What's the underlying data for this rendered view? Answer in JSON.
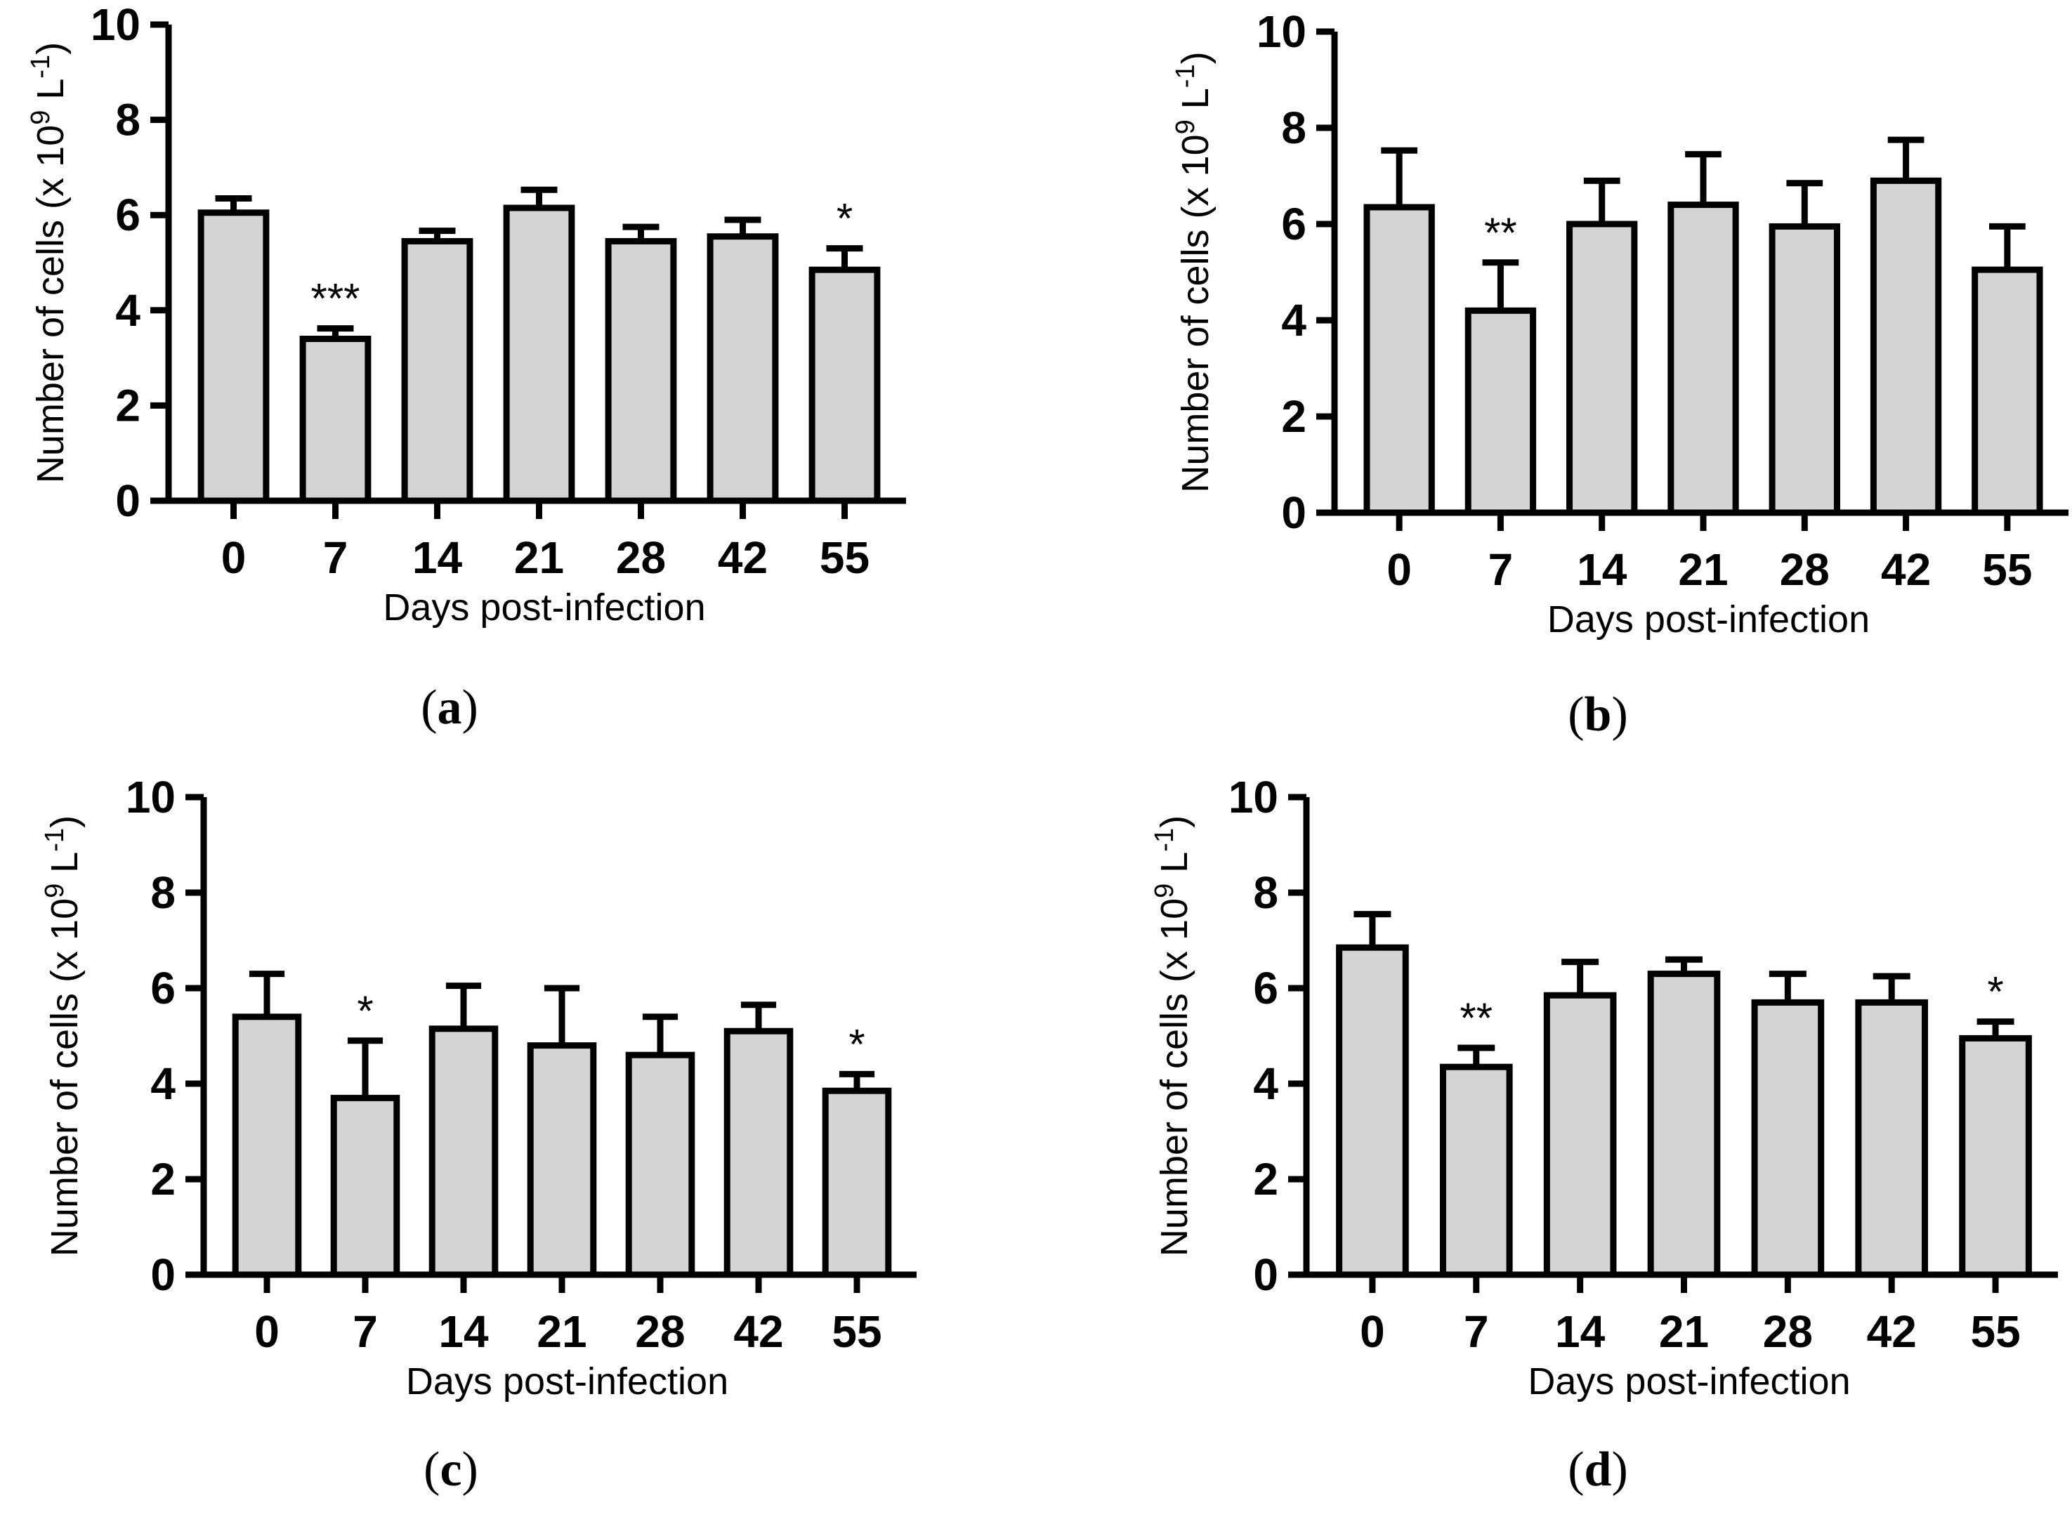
{
  "chart_data": [
    {
      "type": "bar",
      "panel_label": "a",
      "categories": [
        "0",
        "7",
        "14",
        "21",
        "28",
        "42",
        "55"
      ],
      "values": [
        6.05,
        3.4,
        5.45,
        6.15,
        5.45,
        5.55,
        4.85
      ],
      "errors": [
        0.3,
        0.22,
        0.22,
        0.38,
        0.3,
        0.35,
        0.45
      ],
      "significance": [
        "",
        "***",
        "",
        "",
        "",
        "",
        "*"
      ],
      "xlabel": "Days post-infection",
      "ylabel": "Number of cells (x 10^9 L^-1)",
      "ylabel_parts": {
        "main": "Number of cells (x 10",
        "sup1": "9",
        "mid": " L",
        "sup2": "-1",
        "end": ")"
      },
      "ylim": [
        0,
        10
      ],
      "yticks": [
        "0",
        "2",
        "4",
        "6",
        "8",
        "10"
      ],
      "grid": false
    },
    {
      "type": "bar",
      "panel_label": "b",
      "categories": [
        "0",
        "7",
        "14",
        "21",
        "28",
        "42",
        "55"
      ],
      "values": [
        6.35,
        4.2,
        6.0,
        6.4,
        5.95,
        6.9,
        5.05
      ],
      "errors": [
        1.18,
        1.0,
        0.9,
        1.05,
        0.9,
        0.85,
        0.9
      ],
      "significance": [
        "",
        "**",
        "",
        "",
        "",
        "",
        ""
      ],
      "xlabel": "Days post-infection",
      "ylabel": "Number of cells (x 10^9 L^-1)",
      "ylabel_parts": {
        "main": "Number of cells (x 10",
        "sup1": "9",
        "mid": " L",
        "sup2": "-1",
        "end": ")"
      },
      "ylim": [
        0,
        10
      ],
      "yticks": [
        "0",
        "2",
        "4",
        "6",
        "8",
        "10"
      ],
      "grid": false
    },
    {
      "type": "bar",
      "panel_label": "c",
      "categories": [
        "0",
        "7",
        "14",
        "21",
        "28",
        "42",
        "55"
      ],
      "values": [
        5.4,
        3.7,
        5.15,
        4.8,
        4.6,
        5.1,
        3.85
      ],
      "errors": [
        0.9,
        1.2,
        0.9,
        1.2,
        0.8,
        0.55,
        0.35
      ],
      "significance": [
        "",
        "*",
        "",
        "",
        "",
        "",
        "*"
      ],
      "xlabel": "Days post-infection",
      "ylabel": "Number of cells (x 10^9 L^-1)",
      "ylabel_parts": {
        "main": "Number of cells (x 10",
        "sup1": "9",
        "mid": " L",
        "sup2": "-1",
        "end": ")"
      },
      "ylim": [
        0,
        10
      ],
      "yticks": [
        "0",
        "2",
        "4",
        "6",
        "8",
        "10"
      ],
      "grid": false
    },
    {
      "type": "bar",
      "panel_label": "d",
      "categories": [
        "0",
        "7",
        "14",
        "21",
        "28",
        "42",
        "55"
      ],
      "values": [
        6.85,
        4.35,
        5.85,
        6.3,
        5.7,
        5.7,
        4.95
      ],
      "errors": [
        0.7,
        0.4,
        0.7,
        0.3,
        0.6,
        0.55,
        0.35
      ],
      "significance": [
        "",
        "**",
        "",
        "",
        "",
        "",
        "*"
      ],
      "xlabel": "Days post-infection",
      "ylabel": "Number of cells (x 10^9 L^-1)",
      "ylabel_parts": {
        "main": "Number of cells (x 10",
        "sup1": "9",
        "mid": " L",
        "sup2": "-1",
        "end": ")"
      },
      "ylim": [
        0,
        10
      ],
      "yticks": [
        "0",
        "2",
        "4",
        "6",
        "8",
        "10"
      ],
      "grid": false
    }
  ],
  "colors": {
    "bar_fill": "#d4d4d4",
    "stroke": "#000000",
    "background": "#ffffff"
  }
}
